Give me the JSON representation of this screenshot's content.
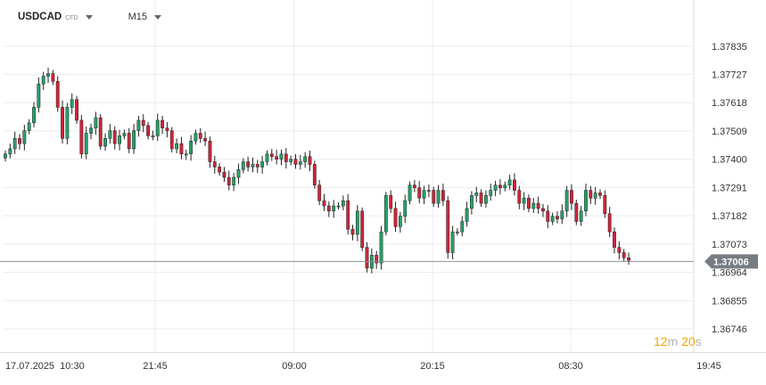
{
  "toolbar": {
    "symbol": "USDCAD",
    "instrument_type": "CFD",
    "timeframe": "M15"
  },
  "countdown": {
    "minutes": "12",
    "minutes_unit": "m",
    "seconds": "20",
    "seconds_unit": "s"
  },
  "colors": {
    "up": "#26a269",
    "down": "#d0253a",
    "grid": "#ececec",
    "price_line": "#8a9096",
    "price_tag": "#767c82"
  },
  "chart_data": {
    "type": "candlestick",
    "title": "USDCAD",
    "timeframe": "M15",
    "y_ticks": [
      "1.37835",
      "1.37727",
      "1.37618",
      "1.37509",
      "1.37400",
      "1.37291",
      "1.37182",
      "1.37073",
      "1.36964",
      "1.36855",
      "1.36746"
    ],
    "ylim": [
      1.36746,
      1.37835
    ],
    "x_ticks": [
      "17.07.2025  10:30",
      "21:45",
      "09:00",
      "20:15",
      "08:30",
      "19:45"
    ],
    "current_price": "1.37006",
    "current_price_value": 1.37006,
    "closes": [
      1.3742,
      1.3744,
      1.3748,
      1.3746,
      1.3751,
      1.3754,
      1.376,
      1.3769,
      1.3772,
      1.3773,
      1.377,
      1.376,
      1.3748,
      1.376,
      1.3763,
      1.3755,
      1.3742,
      1.375,
      1.3752,
      1.3756,
      1.3745,
      1.3748,
      1.3751,
      1.3746,
      1.3749,
      1.375,
      1.3744,
      1.3751,
      1.3755,
      1.3753,
      1.3749,
      1.3749,
      1.3755,
      1.3752,
      1.3751,
      1.3744,
      1.3746,
      1.3742,
      1.3742,
      1.3747,
      1.375,
      1.3748,
      1.3747,
      1.3739,
      1.3737,
      1.3735,
      1.3733,
      1.373,
      1.3733,
      1.3736,
      1.3739,
      1.3737,
      1.3738,
      1.3737,
      1.3739,
      1.3742,
      1.3741,
      1.374,
      1.3742,
      1.3739,
      1.374,
      1.3738,
      1.3739,
      1.3741,
      1.3738,
      1.373,
      1.3724,
      1.3722,
      1.372,
      1.3722,
      1.3722,
      1.3724,
      1.3713,
      1.3711,
      1.372,
      1.3706,
      1.3698,
      1.3703,
      1.37,
      1.3712,
      1.3726,
      1.3721,
      1.3714,
      1.3718,
      1.3724,
      1.373,
      1.3729,
      1.3725,
      1.3728,
      1.3728,
      1.3723,
      1.3728,
      1.3724,
      1.3704,
      1.3712,
      1.3712,
      1.3716,
      1.3721,
      1.3726,
      1.3727,
      1.3723,
      1.3726,
      1.3728,
      1.373,
      1.3729,
      1.373,
      1.3732,
      1.3728,
      1.3723,
      1.3725,
      1.3721,
      1.3723,
      1.3721,
      1.372,
      1.3716,
      1.3718,
      1.3717,
      1.372,
      1.3728,
      1.3723,
      1.3716,
      1.372,
      1.3728,
      1.3725,
      1.3727,
      1.3726,
      1.3719,
      1.3712,
      1.3706,
      1.3704,
      1.3702,
      1.3701
    ]
  }
}
